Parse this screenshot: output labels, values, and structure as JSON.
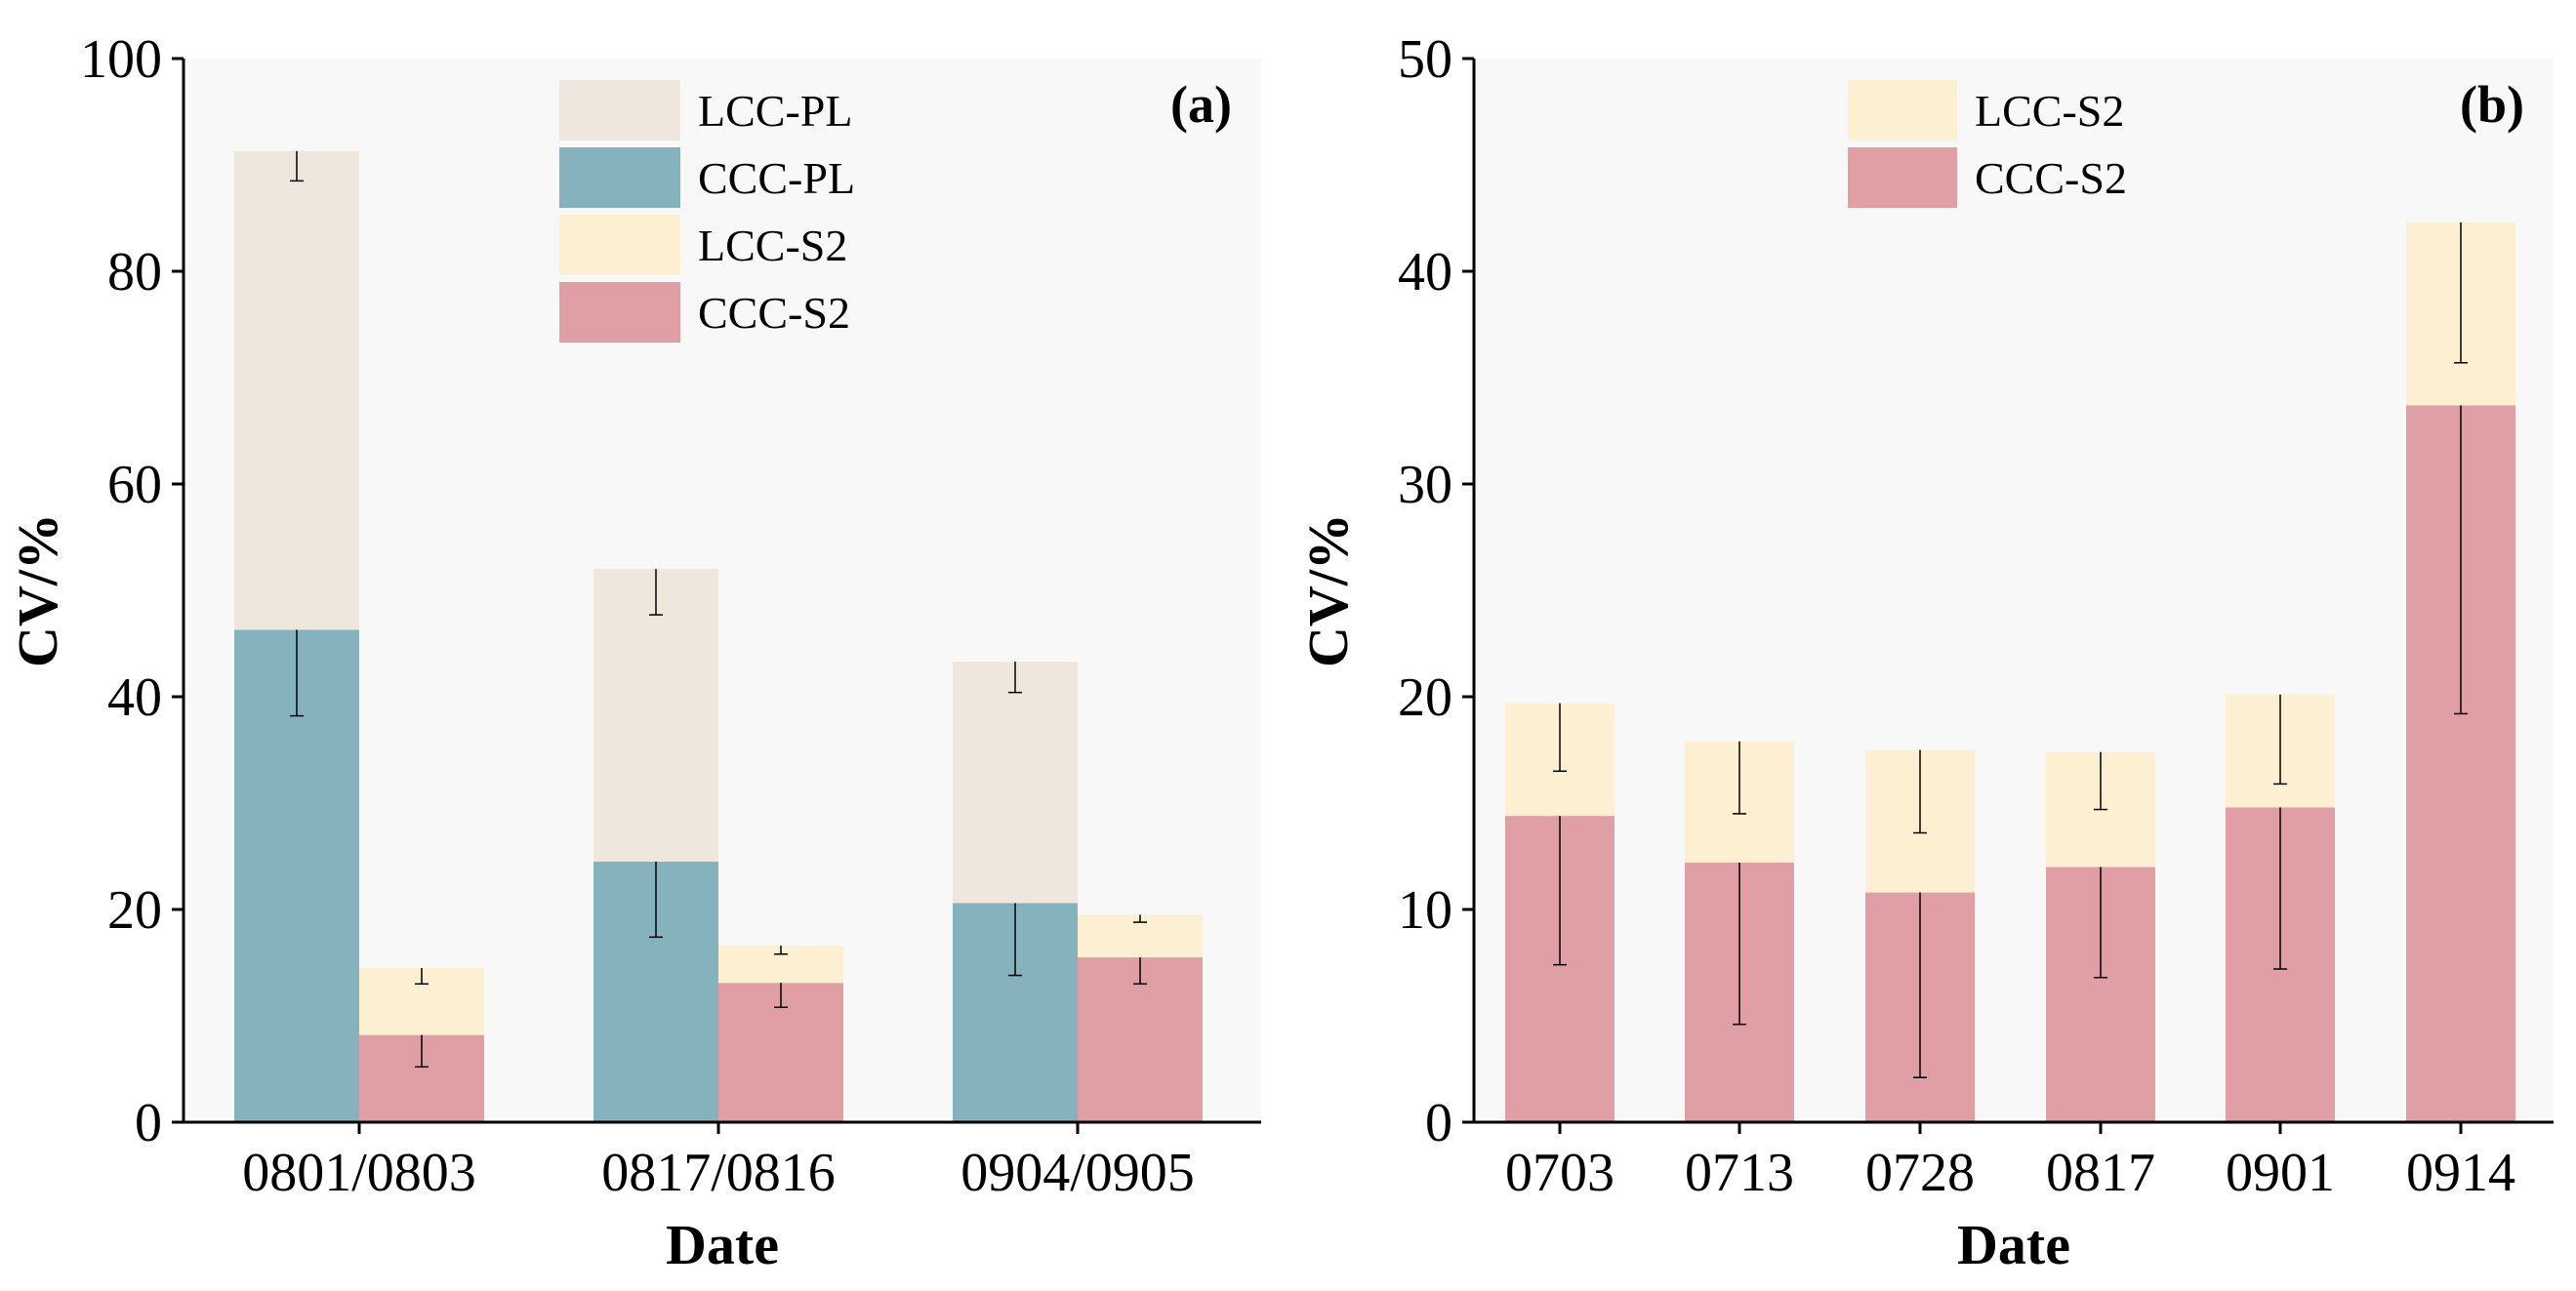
{
  "colors": {
    "LCC-PL": "#efe7dd",
    "CCC-PL": "#85b2bd",
    "LCC-S2": "#fdefd2",
    "CCC-S2": "#e09fa4",
    "plot_bg": "#f8f8f8",
    "error_bar": "#000000"
  },
  "chart_data": [
    {
      "type": "bar",
      "stacked": true,
      "panel_label": "(a)",
      "xlabel": "Date",
      "ylabel": "CV/%",
      "ylim": [
        0,
        100
      ],
      "yticks": [
        0,
        20,
        40,
        60,
        80,
        100
      ],
      "categories": [
        "0801/0803",
        "0817/0816",
        "0904/0905"
      ],
      "legend": [
        "LCC-PL",
        "CCC-PL",
        "LCC-S2",
        "CCC-S2"
      ],
      "legend_position": "top-center",
      "grid": false,
      "stacks": [
        {
          "id": "PL",
          "series": [
            {
              "name": "CCC-PL",
              "values": [
                46.3,
                24.5,
                20.6
              ],
              "err_low": [
                38.2,
                17.4,
                13.8
              ]
            },
            {
              "name": "LCC-PL",
              "values": [
                91.3,
                52.0,
                43.3
              ],
              "err_low": [
                88.5,
                47.7,
                40.4
              ],
              "err_high": [
                91.3,
                52.0,
                43.3
              ]
            }
          ]
        },
        {
          "id": "S2",
          "series": [
            {
              "name": "CCC-S2",
              "values": [
                8.2,
                13.1,
                15.5
              ],
              "err_low": [
                5.2,
                10.8,
                13.0
              ],
              "err_high": [
                8.2,
                13.1,
                15.5
              ]
            },
            {
              "name": "LCC-S2",
              "values": [
                14.5,
                16.6,
                19.5
              ],
              "err_low": [
                13.0,
                15.8,
                18.8
              ],
              "err_high": [
                14.5,
                16.6,
                19.5
              ]
            }
          ]
        }
      ]
    },
    {
      "type": "bar",
      "stacked": true,
      "panel_label": "(b)",
      "xlabel": "Date",
      "ylabel": "CV/%",
      "ylim": [
        0,
        50
      ],
      "yticks": [
        0,
        10,
        20,
        30,
        40,
        50
      ],
      "categories": [
        "0703",
        "0713",
        "0728",
        "0817",
        "0901",
        "0914"
      ],
      "legend": [
        "LCC-S2",
        "CCC-S2"
      ],
      "legend_position": "top-center",
      "grid": false,
      "stacks": [
        {
          "id": "S2",
          "series": [
            {
              "name": "CCC-S2",
              "values": [
                14.4,
                12.2,
                10.8,
                12.0,
                14.8,
                33.7
              ],
              "err_low": [
                7.4,
                4.6,
                2.1,
                6.8,
                7.2,
                19.2
              ]
            },
            {
              "name": "LCC-S2",
              "values": [
                19.7,
                17.9,
                17.5,
                17.4,
                20.1,
                42.3
              ],
              "err_low": [
                16.5,
                14.5,
                13.6,
                14.7,
                15.9,
                35.7
              ],
              "err_high": [
                19.7,
                17.9,
                17.5,
                17.4,
                20.1,
                42.3
              ]
            }
          ]
        }
      ]
    }
  ]
}
